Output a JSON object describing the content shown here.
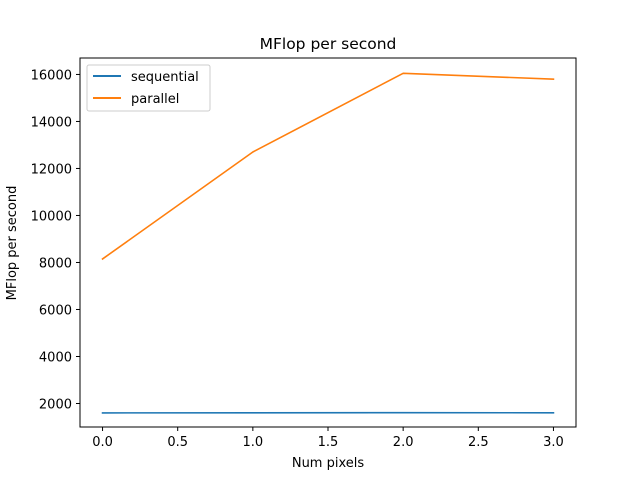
{
  "chart_data": {
    "type": "line",
    "title": "MFlop per second",
    "xlabel": "Num pixels",
    "ylabel": "MFlop per second",
    "xlim": [
      -0.15,
      3.15
    ],
    "ylim": [
      1000,
      16700
    ],
    "xticks": [
      0.0,
      0.5,
      1.0,
      1.5,
      2.0,
      2.5,
      3.0
    ],
    "xtick_labels": [
      "0.0",
      "0.5",
      "1.0",
      "1.5",
      "2.0",
      "2.5",
      "3.0"
    ],
    "yticks": [
      2000,
      4000,
      6000,
      8000,
      10000,
      12000,
      14000,
      16000
    ],
    "ytick_labels": [
      "2000",
      "4000",
      "6000",
      "8000",
      "10000",
      "12000",
      "14000",
      "16000"
    ],
    "grid": false,
    "legend_position": "top-left",
    "x": [
      0,
      1,
      2,
      3
    ],
    "series": [
      {
        "name": "sequential",
        "color": "#1f77b4",
        "values": [
          1600,
          1605,
          1610,
          1605
        ]
      },
      {
        "name": "parallel",
        "color": "#ff7f0e",
        "values": [
          8150,
          12700,
          16050,
          15800
        ]
      }
    ]
  }
}
